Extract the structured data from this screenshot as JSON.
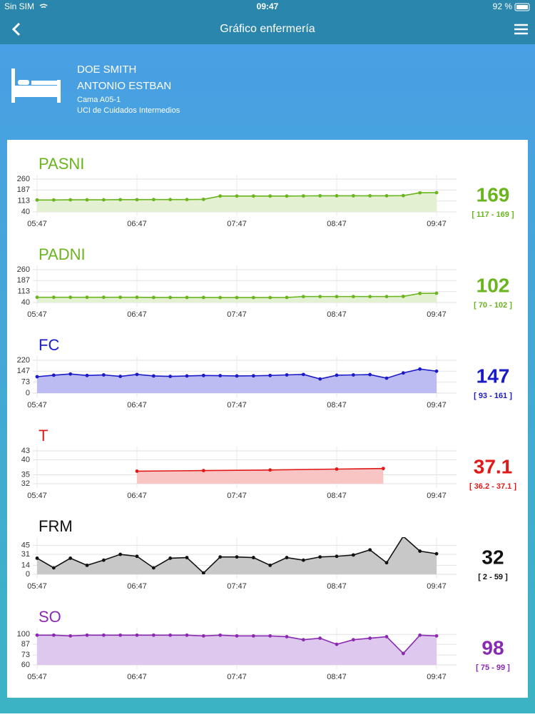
{
  "status_bar": {
    "carrier": "Sin SIM",
    "time": "09:47",
    "battery": "92 %"
  },
  "header": {
    "title": "Gráfico enfermería"
  },
  "patient": {
    "name_line1": "DOE SMITH",
    "name_line2": "ANTONIO ESTBAN",
    "bed": "Cama A05-1",
    "unit": "UCI de Cuidados Intermedios"
  },
  "chart_data": [
    {
      "type": "line",
      "title": "PASNI",
      "color": "#6ab41e",
      "fill": "#e3f0d2",
      "x": [
        0,
        10,
        20,
        30,
        40,
        50,
        60,
        70,
        80,
        90,
        100,
        110,
        120,
        130,
        140,
        150,
        160,
        170,
        180,
        190,
        200,
        210,
        220,
        230,
        240
      ],
      "values": [
        120,
        120,
        121,
        121,
        121,
        122,
        122,
        123,
        123,
        123,
        124,
        146,
        146,
        146,
        146,
        146,
        147,
        148,
        148,
        148,
        148,
        148,
        149,
        168,
        169
      ],
      "xlim": [
        0,
        240
      ],
      "xticks": [
        {
          "value": 0,
          "label": "05:47"
        },
        {
          "value": 60,
          "label": "06:47"
        },
        {
          "value": 120,
          "label": "07:47"
        },
        {
          "value": 180,
          "label": "08:47"
        },
        {
          "value": 240,
          "label": "09:47"
        }
      ],
      "ylim": [
        40,
        260
      ],
      "yticks": [
        40,
        113,
        187,
        260
      ],
      "current": 169,
      "range": "[ 117 - 169 ]"
    },
    {
      "type": "line",
      "title": "PADNI",
      "color": "#6ab41e",
      "fill": "#e3f0d2",
      "x": [
        0,
        10,
        20,
        30,
        40,
        50,
        60,
        70,
        80,
        90,
        100,
        110,
        120,
        130,
        140,
        150,
        160,
        170,
        180,
        190,
        200,
        210,
        220,
        230,
        240
      ],
      "values": [
        75,
        75,
        75,
        75,
        75,
        75,
        75,
        74,
        74,
        74,
        74,
        73,
        73,
        73,
        73,
        74,
        80,
        80,
        80,
        80,
        80,
        80,
        81,
        101,
        102
      ],
      "xlim": [
        0,
        240
      ],
      "xticks": [
        {
          "value": 0,
          "label": "05:47"
        },
        {
          "value": 60,
          "label": "06:47"
        },
        {
          "value": 120,
          "label": "07:47"
        },
        {
          "value": 180,
          "label": "08:47"
        },
        {
          "value": 240,
          "label": "09:47"
        }
      ],
      "ylim": [
        40,
        260
      ],
      "yticks": [
        40,
        113,
        187,
        260
      ],
      "current": 102,
      "range": "[ 70 - 102 ]"
    },
    {
      "type": "line",
      "title": "FC",
      "color": "#1a1ac8",
      "fill": "#bcbcf2",
      "x": [
        0,
        10,
        20,
        30,
        40,
        50,
        60,
        70,
        80,
        90,
        100,
        110,
        120,
        130,
        140,
        150,
        160,
        170,
        180,
        190,
        200,
        210,
        220,
        230,
        240
      ],
      "values": [
        110,
        120,
        128,
        118,
        122,
        112,
        125,
        115,
        112,
        115,
        118,
        117,
        115,
        116,
        118,
        122,
        125,
        95,
        120,
        122,
        124,
        100,
        135,
        161,
        147
      ],
      "xlim": [
        0,
        240
      ],
      "xticks": [
        {
          "value": 0,
          "label": "05:47"
        },
        {
          "value": 60,
          "label": "06:47"
        },
        {
          "value": 120,
          "label": "07:47"
        },
        {
          "value": 180,
          "label": "08:47"
        },
        {
          "value": 240,
          "label": "09:47"
        }
      ],
      "ylim": [
        0,
        220
      ],
      "yticks": [
        0,
        73,
        147,
        220
      ],
      "current": 147,
      "range": "[ 93 - 161 ]"
    },
    {
      "type": "line",
      "title": "T",
      "color": "#e01818",
      "fill": "#f8c4c4",
      "x": [
        60,
        100,
        140,
        180,
        208
      ],
      "values": [
        36.2,
        36.4,
        36.6,
        36.9,
        37.1
      ],
      "xlim": [
        0,
        240
      ],
      "xticks": [
        {
          "value": 0,
          "label": "05:47"
        },
        {
          "value": 60,
          "label": "06:47"
        },
        {
          "value": 120,
          "label": "07:47"
        },
        {
          "value": 180,
          "label": "08:47"
        },
        {
          "value": 240,
          "label": "09:47"
        }
      ],
      "ylim": [
        32,
        43
      ],
      "yticks": [
        32,
        35,
        40,
        43
      ],
      "current": 37.1,
      "range": "[ 36.2 - 37.1 ]"
    },
    {
      "type": "line",
      "title": "FRM",
      "color": "#111111",
      "fill": "#c8c8c8",
      "x": [
        0,
        10,
        20,
        30,
        40,
        50,
        60,
        70,
        80,
        90,
        100,
        110,
        120,
        130,
        140,
        150,
        160,
        170,
        180,
        190,
        200,
        210,
        220,
        230,
        240
      ],
      "values": [
        25,
        10,
        25,
        14,
        22,
        31,
        28,
        10,
        25,
        26,
        2,
        27,
        27,
        26,
        14,
        26,
        22,
        27,
        28,
        30,
        38,
        18,
        59,
        36,
        32
      ],
      "xlim": [
        0,
        240
      ],
      "xticks": [
        {
          "value": 0,
          "label": "05:47"
        },
        {
          "value": 60,
          "label": "06:47"
        },
        {
          "value": 120,
          "label": "07:47"
        },
        {
          "value": 180,
          "label": "08:47"
        },
        {
          "value": 240,
          "label": "09:47"
        }
      ],
      "ylim": [
        0,
        51
      ],
      "yticks": [
        0,
        14,
        31,
        45
      ],
      "current": 32,
      "range": "[ 2 - 59 ]"
    },
    {
      "type": "line",
      "title": "SO",
      "color": "#8a2ab0",
      "fill": "#dec8ee",
      "x": [
        0,
        10,
        20,
        30,
        40,
        50,
        60,
        70,
        80,
        90,
        100,
        110,
        120,
        130,
        140,
        150,
        160,
        170,
        180,
        190,
        200,
        210,
        220,
        230,
        240
      ],
      "values": [
        99,
        99,
        98,
        99,
        99,
        99,
        99,
        99,
        99,
        99,
        98,
        99,
        98,
        98,
        98,
        97,
        93,
        95,
        87,
        93,
        95,
        97,
        75,
        99,
        98
      ],
      "xlim": [
        0,
        240
      ],
      "xticks": [
        {
          "value": 0,
          "label": "05:47"
        },
        {
          "value": 60,
          "label": "06:47"
        },
        {
          "value": 120,
          "label": "07:47"
        },
        {
          "value": 180,
          "label": "08:47"
        },
        {
          "value": 240,
          "label": "09:47"
        }
      ],
      "ylim": [
        60,
        103
      ],
      "yticks": [
        60,
        73,
        87,
        100
      ],
      "current": 98,
      "range": "[ 75 - 99 ]"
    }
  ]
}
